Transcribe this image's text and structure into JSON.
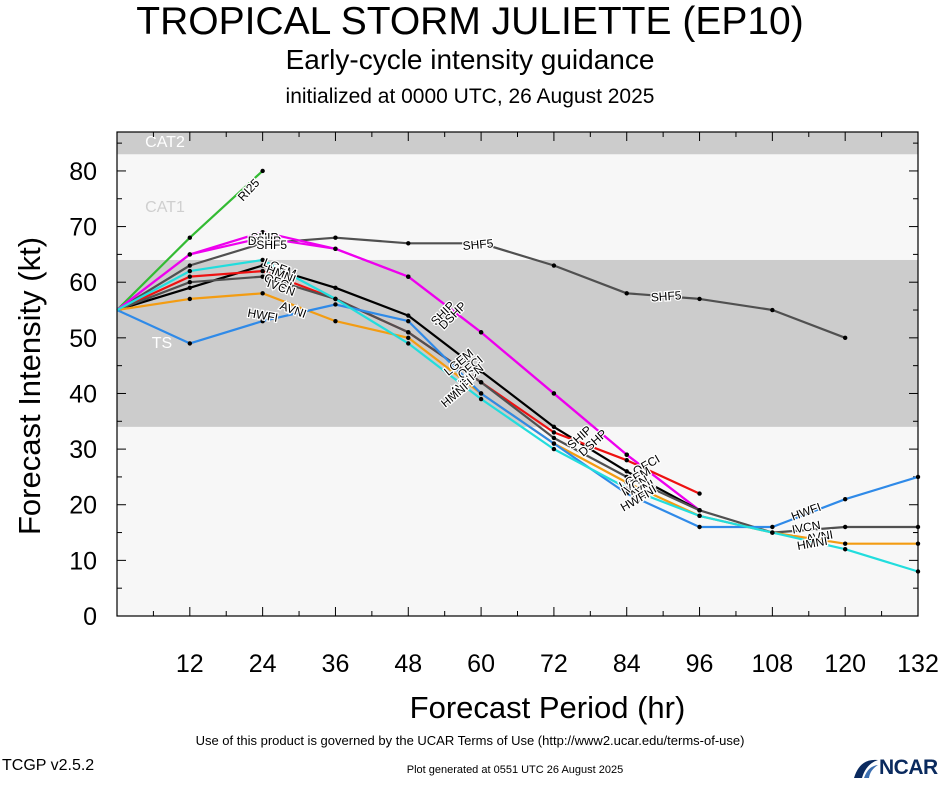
{
  "header": {
    "title": "TROPICAL STORM JULIETTE (EP10)",
    "subtitle": "Early-cycle intensity guidance",
    "init_line": "initialized at 0000 UTC, 26 August 2025"
  },
  "footer": {
    "terms": "Use of this product is governed by the UCAR Terms of Use (http://www2.ucar.edu/terms-of-use)",
    "version": "TCGP v2.5.2",
    "generated": "Plot generated at 0551 UTC   26 August 2025",
    "logo_text": "NCAR"
  },
  "chart_data": {
    "type": "line",
    "xlabel": "Forecast Period (hr)",
    "ylabel": "Forecast Intensity (kt)",
    "xlim": [
      0,
      132
    ],
    "ylim": [
      0,
      87
    ],
    "x_ticks": [
      12,
      24,
      36,
      48,
      60,
      72,
      84,
      96,
      108,
      120,
      132
    ],
    "y_ticks": [
      0,
      10,
      20,
      30,
      40,
      50,
      60,
      70,
      80
    ],
    "bands": [
      {
        "label": "TS",
        "from": 34,
        "to": 64,
        "color": "#cccccc"
      },
      {
        "label": "CAT1",
        "from": 64,
        "to": 83,
        "color": "#f7f7f7"
      },
      {
        "label": "CAT2",
        "from": 83,
        "to": 87,
        "color": "#cccccc"
      }
    ],
    "background_below_ts": "#f7f7f7",
    "series": [
      {
        "name": "RI25",
        "color": "#33bb33",
        "x": [
          0,
          12,
          24
        ],
        "y": [
          55,
          68,
          80
        ]
      },
      {
        "name": "SHF5",
        "color": "#505050",
        "x": [
          0,
          12,
          24,
          36,
          48,
          60,
          72,
          84,
          96,
          108,
          120
        ],
        "y": [
          55,
          63,
          67,
          68,
          67,
          67,
          63,
          58,
          57,
          55,
          50
        ]
      },
      {
        "name": "SHIP",
        "color": "#ee00ee",
        "x": [
          0,
          12,
          24,
          36,
          48,
          60,
          72,
          84,
          96
        ],
        "y": [
          55,
          65,
          69,
          66,
          61,
          51,
          40,
          29,
          19
        ]
      },
      {
        "name": "DSHP",
        "color": "#ee00ee",
        "x": [
          0,
          12,
          24,
          36,
          48,
          60,
          72,
          84,
          96
        ],
        "y": [
          55,
          65,
          68,
          66,
          61,
          51,
          40,
          29,
          19
        ]
      },
      {
        "name": "LGEM",
        "color": "#000000",
        "x": [
          0,
          12,
          24,
          36,
          48,
          60,
          72,
          84,
          96
        ],
        "y": [
          55,
          59,
          63,
          59,
          54,
          44,
          34,
          26,
          19
        ]
      },
      {
        "name": "OFCI",
        "color": "#ee1111",
        "x": [
          0,
          12,
          24,
          36,
          48,
          60,
          72,
          84,
          96
        ],
        "y": [
          55,
          61,
          62,
          57,
          51,
          42,
          33,
          28,
          22
        ]
      },
      {
        "name": "IVCN",
        "color": "#505050",
        "x": [
          0,
          12,
          24,
          36,
          48,
          60,
          72,
          84,
          96,
          108,
          120,
          132
        ],
        "y": [
          55,
          60,
          61,
          57,
          51,
          42,
          32,
          25,
          19,
          15,
          16,
          16
        ]
      },
      {
        "name": "AVNI",
        "color": "#f39c12",
        "x": [
          0,
          12,
          24,
          36,
          48,
          60,
          72,
          84,
          96,
          108,
          120,
          132
        ],
        "y": [
          55,
          57,
          58,
          53,
          50,
          40,
          31,
          24,
          18,
          15,
          13,
          13
        ]
      },
      {
        "name": "HWFI",
        "color": "#2f8ae8",
        "x": [
          0,
          12,
          24,
          36,
          48,
          60,
          72,
          84,
          96,
          108,
          120,
          132
        ],
        "y": [
          55,
          49,
          53,
          56,
          53,
          40,
          31,
          22,
          16,
          16,
          21,
          25
        ]
      },
      {
        "name": "HMNI",
        "color": "#22dddd",
        "x": [
          0,
          12,
          24,
          36,
          48,
          60,
          72,
          84,
          96,
          108,
          120,
          132
        ],
        "y": [
          55,
          62,
          64,
          57,
          49,
          39,
          30,
          23,
          18,
          15,
          12,
          8
        ]
      }
    ],
    "labels": [
      {
        "text": "RI25",
        "x": 21.8,
        "y": 76.5,
        "angle": -47
      },
      {
        "text": "SHIP",
        "x": 24.3,
        "y": 67.9,
        "angle": 0
      },
      {
        "text": "DSHP",
        "x": 24.3,
        "y": 67.3,
        "angle": 0
      },
      {
        "text": "SHF5",
        "x": 25.5,
        "y": 66.5,
        "angle": 0
      },
      {
        "text": "LGEM",
        "x": 26.8,
        "y": 62.4,
        "angle": 22
      },
      {
        "text": "HMNI",
        "x": 27.0,
        "y": 61.3,
        "angle": 22
      },
      {
        "text": "OFCI",
        "x": 26.5,
        "y": 59.9,
        "angle": 20
      },
      {
        "text": "IVCN",
        "x": 27.0,
        "y": 58.9,
        "angle": 20
      },
      {
        "text": "AVNI",
        "x": 29.0,
        "y": 54.9,
        "angle": 20
      },
      {
        "text": "HWFI",
        "x": 24.0,
        "y": 53.9,
        "angle": 10
      },
      {
        "text": "SHF5",
        "x": 59.5,
        "y": 66.6,
        "angle": -5
      },
      {
        "text": "SHF5",
        "x": 90.5,
        "y": 57.3,
        "angle": -4
      },
      {
        "text": "SHIP",
        "x": 53.8,
        "y": 54.3,
        "angle": -45
      },
      {
        "text": "DSHP",
        "x": 55.4,
        "y": 53.9,
        "angle": -45
      },
      {
        "text": "LGEM",
        "x": 56.4,
        "y": 45.5,
        "angle": -40
      },
      {
        "text": "OFCI",
        "x": 58.3,
        "y": 44.6,
        "angle": -40
      },
      {
        "text": "IVCN",
        "x": 58.4,
        "y": 43.1,
        "angle": -40
      },
      {
        "text": "AVNI",
        "x": 57.0,
        "y": 41.5,
        "angle": -40
      },
      {
        "text": "HWFI",
        "x": 56.5,
        "y": 40.4,
        "angle": -40
      },
      {
        "text": "HMNI",
        "x": 55.7,
        "y": 39.6,
        "angle": -40
      },
      {
        "text": "SHIP",
        "x": 76.3,
        "y": 32.0,
        "angle": -42
      },
      {
        "text": "DSHP",
        "x": 78.5,
        "y": 31.0,
        "angle": -42
      },
      {
        "text": "OFCI",
        "x": 87.3,
        "y": 27.0,
        "angle": -30
      },
      {
        "text": "LGEM",
        "x": 85.4,
        "y": 24.6,
        "angle": -30
      },
      {
        "text": "IVCN",
        "x": 85.4,
        "y": 23.3,
        "angle": -30
      },
      {
        "text": "AVNI",
        "x": 86.6,
        "y": 22.6,
        "angle": -30
      },
      {
        "text": "HMNI",
        "x": 86.6,
        "y": 21.5,
        "angle": -30
      },
      {
        "text": "HWFI",
        "x": 85.4,
        "y": 20.6,
        "angle": -30
      },
      {
        "text": "HWFI",
        "x": 113.6,
        "y": 18.6,
        "angle": -20
      },
      {
        "text": "IVCN",
        "x": 113.6,
        "y": 15.8,
        "angle": -10
      },
      {
        "text": "AVNI",
        "x": 115.8,
        "y": 14.1,
        "angle": -10
      },
      {
        "text": "HMNI",
        "x": 114.6,
        "y": 12.9,
        "angle": -10
      }
    ]
  }
}
